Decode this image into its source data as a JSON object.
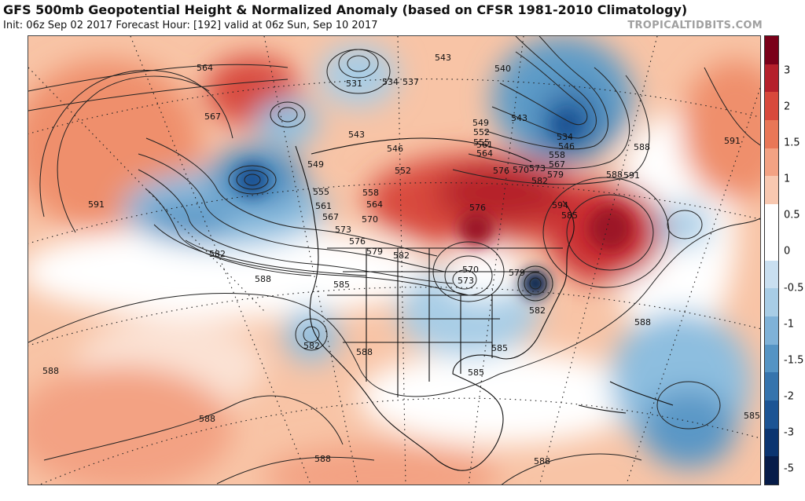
{
  "header": {
    "title": "GFS 500mb Geopotential Height & Normalized Anomaly (based on CFSR 1981-2010 Climatology)",
    "subtitle": "Init: 06z Sep 02 2017   Forecast Hour: [192]   valid at 06z Sun, Sep 10 2017",
    "brand": "TROPICALTIDBITS.COM"
  },
  "colorbar": {
    "labels": [
      "3",
      "2",
      "1.5",
      "1",
      "0.5",
      "0",
      "-0.5",
      "-1",
      "-1.5",
      "-2",
      "-3",
      "-5"
    ],
    "colors": [
      "#7a0019",
      "#b5202b",
      "#d8493c",
      "#e97757",
      "#f3a283",
      "#f8c8b0",
      "#ffffff",
      "#ffffff",
      "#c9dff0",
      "#a8cde6",
      "#7fb2d8",
      "#5594c4",
      "#3674ad",
      "#1c5494",
      "#0b3570",
      "#061c49"
    ]
  },
  "map": {
    "height_labels": [
      "564",
      "567",
      "591",
      "582",
      "531",
      "534",
      "537",
      "543",
      "540",
      "543",
      "534",
      "546",
      "588",
      "591",
      "549",
      "552",
      "555",
      "558",
      "561",
      "564",
      "567",
      "570",
      "573",
      "576",
      "579",
      "582",
      "543",
      "546",
      "549",
      "552",
      "555",
      "558",
      "561",
      "564",
      "567",
      "570",
      "573",
      "576",
      "579",
      "582",
      "585",
      "588",
      "591",
      "594",
      "573",
      "570",
      "576",
      "579",
      "582",
      "585",
      "588",
      "582",
      "588",
      "585",
      "588",
      "588",
      "588",
      "588",
      "585",
      "585",
      "588"
    ],
    "anomaly_features": [
      {
        "kind": "positive",
        "region": "Gulf of Alaska ridge"
      },
      {
        "kind": "negative",
        "region": "Pacific Northwest trough"
      },
      {
        "kind": "positive",
        "region": "central Canada ridge"
      },
      {
        "kind": "negative",
        "region": "Great Lakes / eastern US trough"
      },
      {
        "kind": "negative",
        "region": "Southeast US coastal low"
      },
      {
        "kind": "positive",
        "region": "western Atlantic ridge"
      },
      {
        "kind": "negative",
        "region": "Caribbean"
      }
    ]
  }
}
